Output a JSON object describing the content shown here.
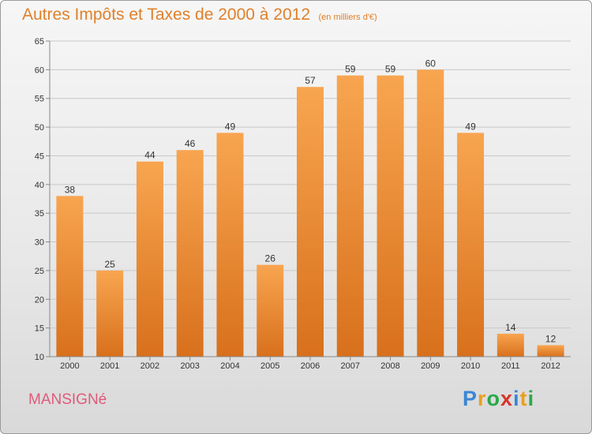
{
  "header": {
    "title": "Autres Impôts et Taxes de 2000 à 2012",
    "unit": "(en milliers d'€)"
  },
  "footer": {
    "commune": "MANSIGNé",
    "logo_letters": [
      "P",
      "r",
      "o",
      "x",
      "i",
      "t",
      "i"
    ],
    "logo_colors": [
      "#3a86d6",
      "#e8a020",
      "#2aa84a",
      "#d8342c",
      "#3a86d6",
      "#e8a020",
      "#2aa84a"
    ]
  },
  "colors": {
    "accent": "#e0802a",
    "bar_top": "#f8a550",
    "bar_bottom": "#d8701c",
    "commune": "#e05a7a"
  },
  "chart_data": {
    "type": "bar",
    "title": "Autres Impôts et Taxes de 2000 à 2012",
    "categories": [
      "2000",
      "2001",
      "2002",
      "2003",
      "2004",
      "2005",
      "2006",
      "2007",
      "2008",
      "2009",
      "2010",
      "2011",
      "2012"
    ],
    "values": [
      38,
      25,
      44,
      46,
      49,
      26,
      57,
      59,
      59,
      60,
      49,
      14,
      12
    ],
    "ylim": [
      10,
      65
    ],
    "yticks": [
      10,
      15,
      20,
      25,
      30,
      35,
      40,
      45,
      50,
      55,
      60,
      65
    ],
    "grid": true,
    "xlabel": "",
    "ylabel": ""
  }
}
